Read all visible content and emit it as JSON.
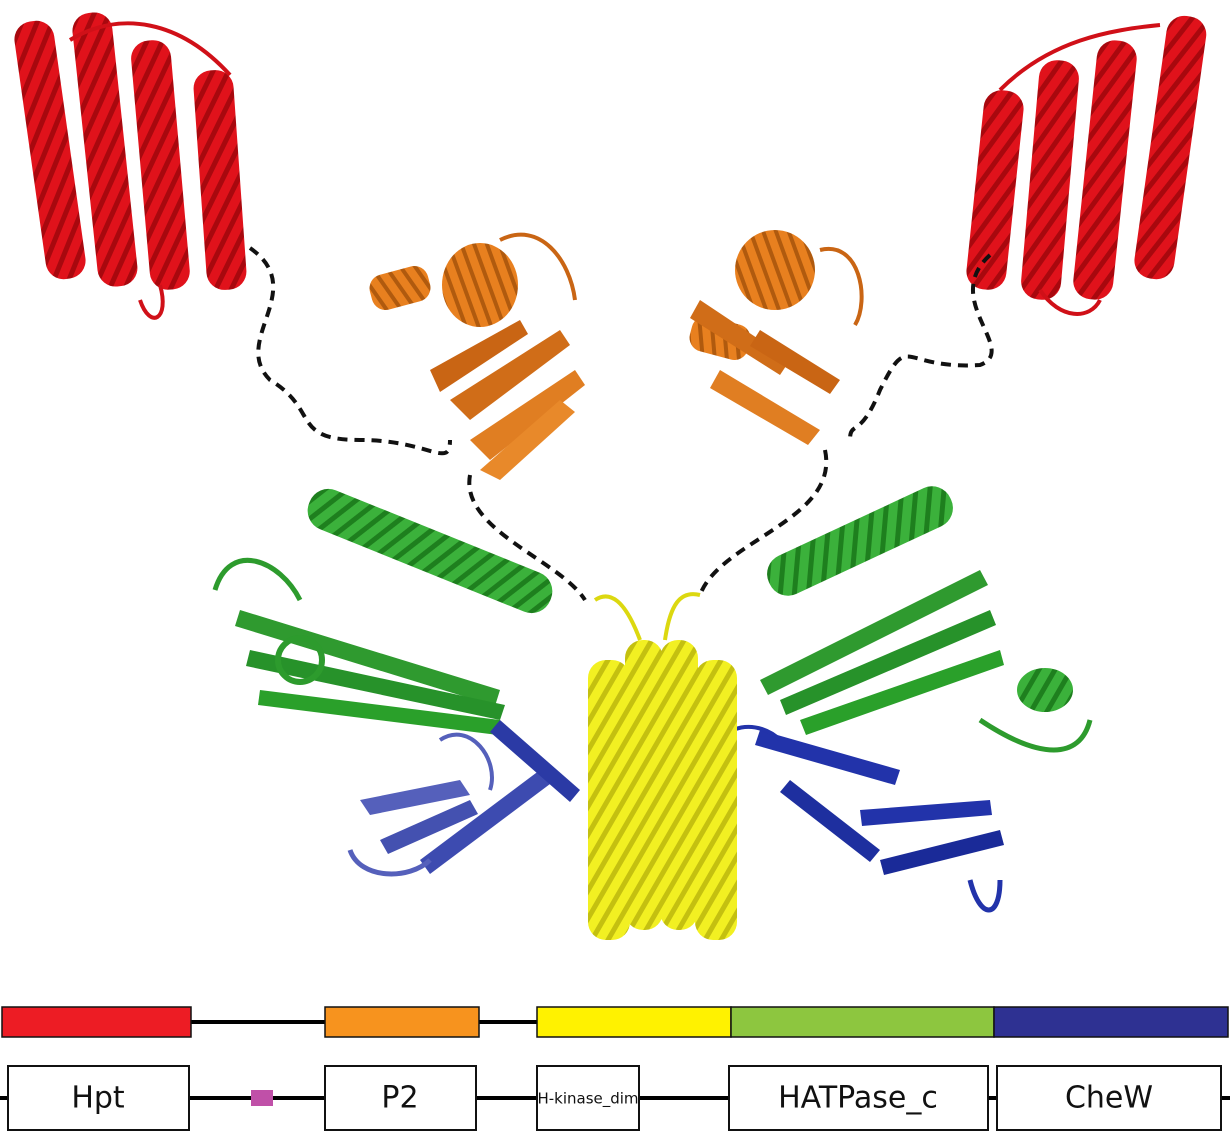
{
  "figure": {
    "title": "",
    "colors": {
      "hpt": "#ed1c24",
      "p2": "#f7931e",
      "dim": "#fff200",
      "hatpase": "#8dc63f",
      "chew": "#2e3192",
      "linker": "#000000",
      "motif": "#c050a8"
    }
  },
  "structure": {
    "label": "Protein structure model (domain-colored cartoon)",
    "hpt_color": "#e0121b",
    "p2_color": "#e07818",
    "dim_color": "#eeee10",
    "hatpase_color": "#33a833",
    "chew_color": "#2233aa"
  },
  "color_bar": {
    "segments": [
      {
        "domain": "Hpt",
        "color": "#ed1c24"
      },
      {
        "domain": "P2",
        "color": "#f7931e"
      },
      {
        "domain": "H-kinase_dim",
        "color": "#fff200"
      },
      {
        "domain": "HATPase_c",
        "color": "#8dc63f"
      },
      {
        "domain": "CheW",
        "color": "#2e3192"
      }
    ]
  },
  "domain_map": {
    "boxes": [
      {
        "label": "Hpt"
      },
      {
        "label": "P2"
      },
      {
        "label": "H-kinase_dim"
      },
      {
        "label": "HATPase_c"
      },
      {
        "label": "CheW"
      }
    ]
  }
}
